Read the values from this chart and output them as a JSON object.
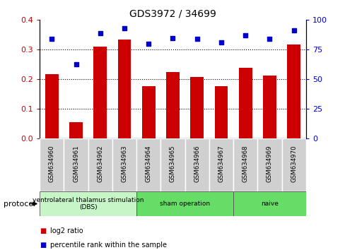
{
  "title": "GDS3972 / 34699",
  "samples": [
    "GSM634960",
    "GSM634961",
    "GSM634962",
    "GSM634963",
    "GSM634964",
    "GSM634965",
    "GSM634966",
    "GSM634967",
    "GSM634968",
    "GSM634969",
    "GSM634970"
  ],
  "log2_ratio": [
    0.218,
    0.055,
    0.31,
    0.333,
    0.178,
    0.224,
    0.209,
    0.178,
    0.24,
    0.214,
    0.318
  ],
  "percentile_rank": [
    84,
    63,
    89,
    93,
    80,
    85,
    84,
    81,
    87,
    84,
    91
  ],
  "bar_color": "#cc0000",
  "dot_color": "#0000cc",
  "left_ylim": [
    0,
    0.4
  ],
  "right_ylim": [
    0,
    100
  ],
  "left_yticks": [
    0,
    0.1,
    0.2,
    0.3,
    0.4
  ],
  "right_yticks": [
    0,
    25,
    50,
    75,
    100
  ],
  "groups": [
    {
      "label": "ventrolateral thalamus stimulation\n(DBS)",
      "start": 0,
      "end": 4,
      "color": "#c8f5c8"
    },
    {
      "label": "sham operation",
      "start": 4,
      "end": 8,
      "color": "#66dd66"
    },
    {
      "label": "naive",
      "start": 8,
      "end": 11,
      "color": "#66dd66"
    }
  ],
  "legend_bar_label": "log2 ratio",
  "legend_dot_label": "percentile rank within the sample",
  "protocol_label": "protocol",
  "bg_color": "#ffffff",
  "plot_bg": "#ffffff",
  "tick_label_color_left": "#cc0000",
  "tick_label_color_right": "#0000cc",
  "sample_box_color": "#d0d0d0",
  "title_fontsize": 10,
  "bar_width": 0.55
}
